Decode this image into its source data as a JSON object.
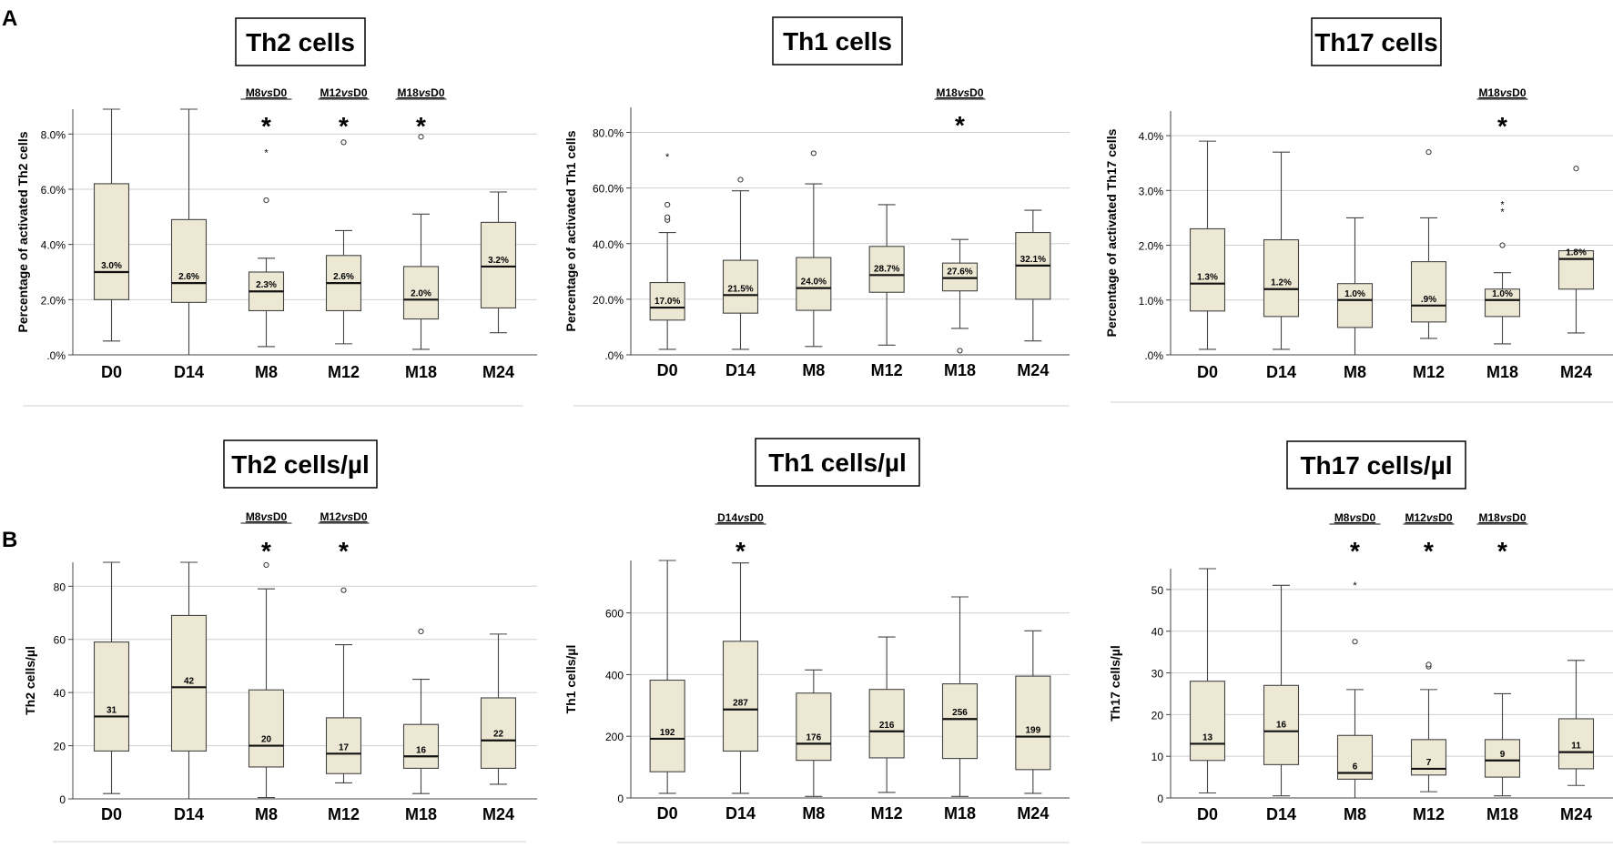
{
  "panel_labels": [
    "A",
    "B"
  ],
  "colors": {
    "box_fill": "#ede8d4",
    "box_stroke": "#444444",
    "grid": "#cfcfcf",
    "axis": "#444444",
    "panel_rule": "#d9d9d9"
  },
  "chart_data": [
    {
      "type": "boxplot",
      "title": "Th2 cells",
      "ylabel": "Percentage of activated Th2 cells",
      "ylim": [
        0,
        8.9
      ],
      "yticks": [
        0,
        2,
        4,
        6,
        8
      ],
      "ytick_labels": [
        ".0%",
        "2.0%",
        "4.0%",
        "6.0%",
        "8.0%"
      ],
      "categories": [
        "D0",
        "D14",
        "M8",
        "M12",
        "M18",
        "M24"
      ],
      "boxes": [
        {
          "min": 0.5,
          "q1": 2.0,
          "median": 3.0,
          "q3": 6.2,
          "max": 8.9,
          "label": "3.0%",
          "outliers": [],
          "extremes": []
        },
        {
          "min": 0.0,
          "q1": 1.9,
          "median": 2.6,
          "q3": 4.9,
          "max": 8.9,
          "label": "2.6%",
          "outliers": [],
          "extremes": []
        },
        {
          "min": 0.3,
          "q1": 1.6,
          "median": 2.3,
          "q3": 3.0,
          "max": 3.5,
          "label": "2.3%",
          "outliers": [
            5.6
          ],
          "extremes": [
            7.4
          ]
        },
        {
          "min": 0.4,
          "q1": 1.6,
          "median": 2.6,
          "q3": 3.6,
          "max": 4.5,
          "label": "2.6%",
          "outliers": [
            7.7
          ],
          "extremes": []
        },
        {
          "min": 0.2,
          "q1": 1.3,
          "median": 2.0,
          "q3": 3.2,
          "max": 5.1,
          "label": "2.0%",
          "outliers": [
            7.9
          ],
          "extremes": []
        },
        {
          "min": 0.8,
          "q1": 1.7,
          "median": 3.2,
          "q3": 4.8,
          "max": 5.9,
          "label": "3.2%",
          "outliers": [],
          "extremes": []
        }
      ],
      "comparisons": [
        {
          "index": 2,
          "prefix": "M8",
          "vs": "vs",
          "suffix": "D0",
          "marker": "*"
        },
        {
          "index": 3,
          "prefix": "M12",
          "vs": "vs",
          "suffix": "D0",
          "marker": "*"
        },
        {
          "index": 4,
          "prefix": "M18",
          "vs": "vs",
          "suffix": "D0",
          "marker": "*"
        }
      ]
    },
    {
      "type": "boxplot",
      "title": "Th1 cells",
      "ylabel": "Percentage of activated Th1 cells",
      "ylim": [
        0,
        89
      ],
      "yticks": [
        0,
        20,
        40,
        60,
        80
      ],
      "ytick_labels": [
        ".0%",
        "20.0%",
        "40.0%",
        "60.0%",
        "80.0%"
      ],
      "categories": [
        "D0",
        "D14",
        "M8",
        "M12",
        "M18",
        "M24"
      ],
      "boxes": [
        {
          "min": 2,
          "q1": 12.5,
          "median": 17.0,
          "q3": 26,
          "max": 44,
          "label": "17.0%",
          "outliers": [
            48.5,
            49.5,
            54
          ],
          "extremes": [
            72
          ]
        },
        {
          "min": 2,
          "q1": 15,
          "median": 21.5,
          "q3": 34,
          "max": 59,
          "label": "21.5%",
          "outliers": [
            63
          ],
          "extremes": []
        },
        {
          "min": 3,
          "q1": 16,
          "median": 24.0,
          "q3": 35,
          "max": 61.5,
          "label": "24.0%",
          "outliers": [
            72.5
          ],
          "extremes": []
        },
        {
          "min": 3.5,
          "q1": 22.5,
          "median": 28.7,
          "q3": 39,
          "max": 54,
          "label": "28.7%",
          "outliers": [],
          "extremes": []
        },
        {
          "min": 9.5,
          "q1": 23,
          "median": 27.6,
          "q3": 33,
          "max": 41.5,
          "label": "27.6%",
          "outliers": [
            1.5
          ],
          "extremes": []
        },
        {
          "min": 5,
          "q1": 20,
          "median": 32.1,
          "q3": 44,
          "max": 52,
          "label": "32.1%",
          "outliers": [],
          "extremes": []
        }
      ],
      "comparisons": [
        {
          "index": 4,
          "prefix": "M18",
          "vs": "vs",
          "suffix": "D0",
          "marker": "*"
        }
      ]
    },
    {
      "type": "boxplot",
      "title": "Th17 cells",
      "ylabel": "Percentage of activated Th17 cells",
      "ylim": [
        0,
        4.45
      ],
      "yticks": [
        0,
        1,
        2,
        3,
        4
      ],
      "ytick_labels": [
        ".0%",
        "1.0%",
        "2.0%",
        "3.0%",
        "4.0%"
      ],
      "categories": [
        "D0",
        "D14",
        "M8",
        "M12",
        "M18",
        "M24"
      ],
      "boxes": [
        {
          "min": 0.1,
          "q1": 0.8,
          "median": 1.3,
          "q3": 2.3,
          "max": 3.9,
          "label": "1.3%",
          "outliers": [],
          "extremes": []
        },
        {
          "min": 0.1,
          "q1": 0.7,
          "median": 1.2,
          "q3": 2.1,
          "max": 3.7,
          "label": "1.2%",
          "outliers": [],
          "extremes": []
        },
        {
          "min": 0.0,
          "q1": 0.5,
          "median": 1.0,
          "q3": 1.3,
          "max": 2.5,
          "label": "1.0%",
          "outliers": [],
          "extremes": []
        },
        {
          "min": 0.3,
          "q1": 0.6,
          "median": 0.9,
          "q3": 1.7,
          "max": 2.5,
          "label": ".9%",
          "outliers": [
            3.7
          ],
          "extremes": []
        },
        {
          "min": 0.2,
          "q1": 0.7,
          "median": 1.0,
          "q3": 1.2,
          "max": 1.5,
          "label": "1.0%",
          "outliers": [
            2.0
          ],
          "extremes": [
            2.65,
            2.78
          ]
        },
        {
          "min": 0.4,
          "q1": 1.2,
          "median": 1.75,
          "q3": 1.9,
          "max": 1.9,
          "label": "1.8%",
          "outliers": [
            3.4
          ],
          "extremes": []
        }
      ],
      "comparisons": [
        {
          "index": 4,
          "prefix": "M18",
          "vs": "vs",
          "suffix": "D0",
          "marker": "*"
        }
      ]
    },
    {
      "type": "boxplot",
      "title": "Th2 cells/µl",
      "ylabel": "Th2 cells/µl",
      "ylim": [
        0,
        89
      ],
      "yticks": [
        0,
        20,
        40,
        60,
        80
      ],
      "ytick_labels": [
        "0",
        "20",
        "40",
        "60",
        "80"
      ],
      "categories": [
        "D0",
        "D14",
        "M8",
        "M12",
        "M18",
        "M24"
      ],
      "boxes": [
        {
          "min": 2,
          "q1": 18,
          "median": 31,
          "q3": 59,
          "max": 89,
          "label": "31",
          "outliers": [],
          "extremes": []
        },
        {
          "min": 0,
          "q1": 18,
          "median": 42,
          "q3": 69,
          "max": 89,
          "label": "42",
          "outliers": [],
          "extremes": []
        },
        {
          "min": 0.5,
          "q1": 12,
          "median": 20,
          "q3": 41,
          "max": 79,
          "label": "20",
          "outliers": [
            88
          ],
          "extremes": []
        },
        {
          "min": 6,
          "q1": 9.5,
          "median": 17,
          "q3": 30.5,
          "max": 58,
          "label": "17",
          "outliers": [
            78.5
          ],
          "extremes": []
        },
        {
          "min": 2,
          "q1": 11.5,
          "median": 16,
          "q3": 28,
          "max": 45,
          "label": "16",
          "outliers": [
            63
          ],
          "extremes": []
        },
        {
          "min": 5.5,
          "q1": 11.5,
          "median": 22,
          "q3": 38,
          "max": 62,
          "label": "22",
          "outliers": [],
          "extremes": []
        }
      ],
      "comparisons": [
        {
          "index": 2,
          "prefix": "M8",
          "vs": "vs",
          "suffix": "D0",
          "marker": "*"
        },
        {
          "index": 3,
          "prefix": "M12",
          "vs": "vs",
          "suffix": "D0",
          "marker": "*"
        }
      ]
    },
    {
      "type": "boxplot",
      "title": "Th1 cells/µl",
      "ylabel": "Th1 cells/µl",
      "ylim": [
        0,
        770
      ],
      "yticks": [
        0,
        200,
        400,
        600
      ],
      "ytick_labels": [
        "0",
        "200",
        "400",
        "600"
      ],
      "categories": [
        "D0",
        "D14",
        "M8",
        "M12",
        "M18",
        "M24"
      ],
      "boxes": [
        {
          "min": 15,
          "q1": 85,
          "median": 192,
          "q3": 382,
          "max": 770,
          "label": "192",
          "outliers": [],
          "extremes": []
        },
        {
          "min": 15,
          "q1": 152,
          "median": 287,
          "q3": 508,
          "max": 762,
          "label": "287",
          "outliers": [],
          "extremes": []
        },
        {
          "min": 5,
          "q1": 122,
          "median": 176,
          "q3": 340,
          "max": 415,
          "label": "176",
          "outliers": [],
          "extremes": []
        },
        {
          "min": 18,
          "q1": 130,
          "median": 216,
          "q3": 352,
          "max": 522,
          "label": "216",
          "outliers": [],
          "extremes": []
        },
        {
          "min": 5,
          "q1": 128,
          "median": 256,
          "q3": 370,
          "max": 652,
          "label": "256",
          "outliers": [],
          "extremes": []
        },
        {
          "min": 15,
          "q1": 92,
          "median": 199,
          "q3": 395,
          "max": 542,
          "label": "199",
          "outliers": [],
          "extremes": []
        }
      ],
      "comparisons": [
        {
          "index": 1,
          "prefix": "D14",
          "vs": "vs",
          "suffix": "D0",
          "marker": "*"
        }
      ]
    },
    {
      "type": "boxplot",
      "title": "Th17 cells/µl",
      "ylabel": "Th17 cells/µl",
      "ylim": [
        0,
        55
      ],
      "yticks": [
        0,
        10,
        20,
        30,
        40,
        50
      ],
      "ytick_labels": [
        "0",
        "10",
        "20",
        "30",
        "40",
        "50"
      ],
      "categories": [
        "D0",
        "D14",
        "M8",
        "M12",
        "M18",
        "M24"
      ],
      "boxes": [
        {
          "min": 1.2,
          "q1": 9,
          "median": 13,
          "q3": 28,
          "max": 55,
          "label": "13",
          "outliers": [],
          "extremes": []
        },
        {
          "min": 0.5,
          "q1": 8,
          "median": 16,
          "q3": 27,
          "max": 51,
          "label": "16",
          "outliers": [],
          "extremes": []
        },
        {
          "min": 0,
          "q1": 4.5,
          "median": 6,
          "q3": 15,
          "max": 26,
          "label": "6",
          "outliers": [
            37.5
          ],
          "extremes": [
            51.5
          ]
        },
        {
          "min": 1.5,
          "q1": 5.5,
          "median": 7,
          "q3": 14,
          "max": 26,
          "label": "7",
          "outliers": [
            31.5,
            32
          ],
          "extremes": []
        },
        {
          "min": 0.5,
          "q1": 5,
          "median": 9,
          "q3": 14,
          "max": 25,
          "label": "9",
          "outliers": [],
          "extremes": []
        },
        {
          "min": 3,
          "q1": 7,
          "median": 11,
          "q3": 19,
          "max": 33,
          "label": "11",
          "outliers": [],
          "extremes": []
        }
      ],
      "comparisons": [
        {
          "index": 2,
          "prefix": "M8",
          "vs": "vs",
          "suffix": "D0",
          "marker": "*"
        },
        {
          "index": 3,
          "prefix": "M12",
          "vs": "vs",
          "suffix": "D0",
          "marker": "*"
        },
        {
          "index": 4,
          "prefix": "M18",
          "vs": "vs",
          "suffix": "D0",
          "marker": "*"
        }
      ]
    }
  ]
}
